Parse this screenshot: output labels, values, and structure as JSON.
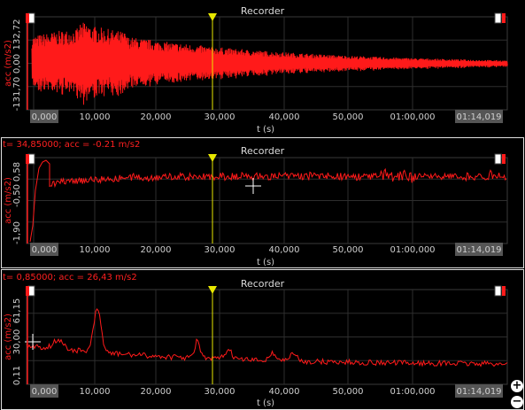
{
  "colors": {
    "signal": "#ff1a1a",
    "cursor": "#e8e800",
    "grid": "#2e2e2e",
    "frame": "#e0e0e0",
    "axisText": "#cfcfcf",
    "labelRed": "#ff2020"
  },
  "panels": [
    {
      "title": "Recorder",
      "status": "",
      "ylabel": "acc (m/s2)",
      "yticks": [
        "132,72",
        "0,00",
        "-131,70"
      ],
      "xticks": [
        "0,000",
        "10,000",
        "20,000",
        "30,000",
        "40,000",
        "50,000",
        "01:00,000",
        "01:14,019"
      ],
      "xlabel": "t (s)"
    },
    {
      "title": "Recorder",
      "status": "t= 34,85000; acc = -0.21 m/s2",
      "ylabel": "acc (m/s2)",
      "yticks": [
        "0,58",
        "-0,50",
        "-1,90"
      ],
      "xticks": [
        "0,000",
        "10,000",
        "20,000",
        "30,000",
        "40,000",
        "50,000",
        "01:00,000",
        "01:14,019"
      ],
      "xlabel": "t (s)"
    },
    {
      "title": "Recorder",
      "status": "t= 0,85000; acc = 26,43 m/s2",
      "ylabel": "acc (m/s2)",
      "yticks": [
        "61,15",
        "30,00",
        "0,11"
      ],
      "xticks": [
        "0,000",
        "10,000",
        "20,000",
        "30,000",
        "40,000",
        "50,000",
        "01:00,000",
        "01:14,019"
      ],
      "xlabel": "t (s)"
    }
  ],
  "zoom": {
    "in": "+",
    "out": "−"
  }
}
